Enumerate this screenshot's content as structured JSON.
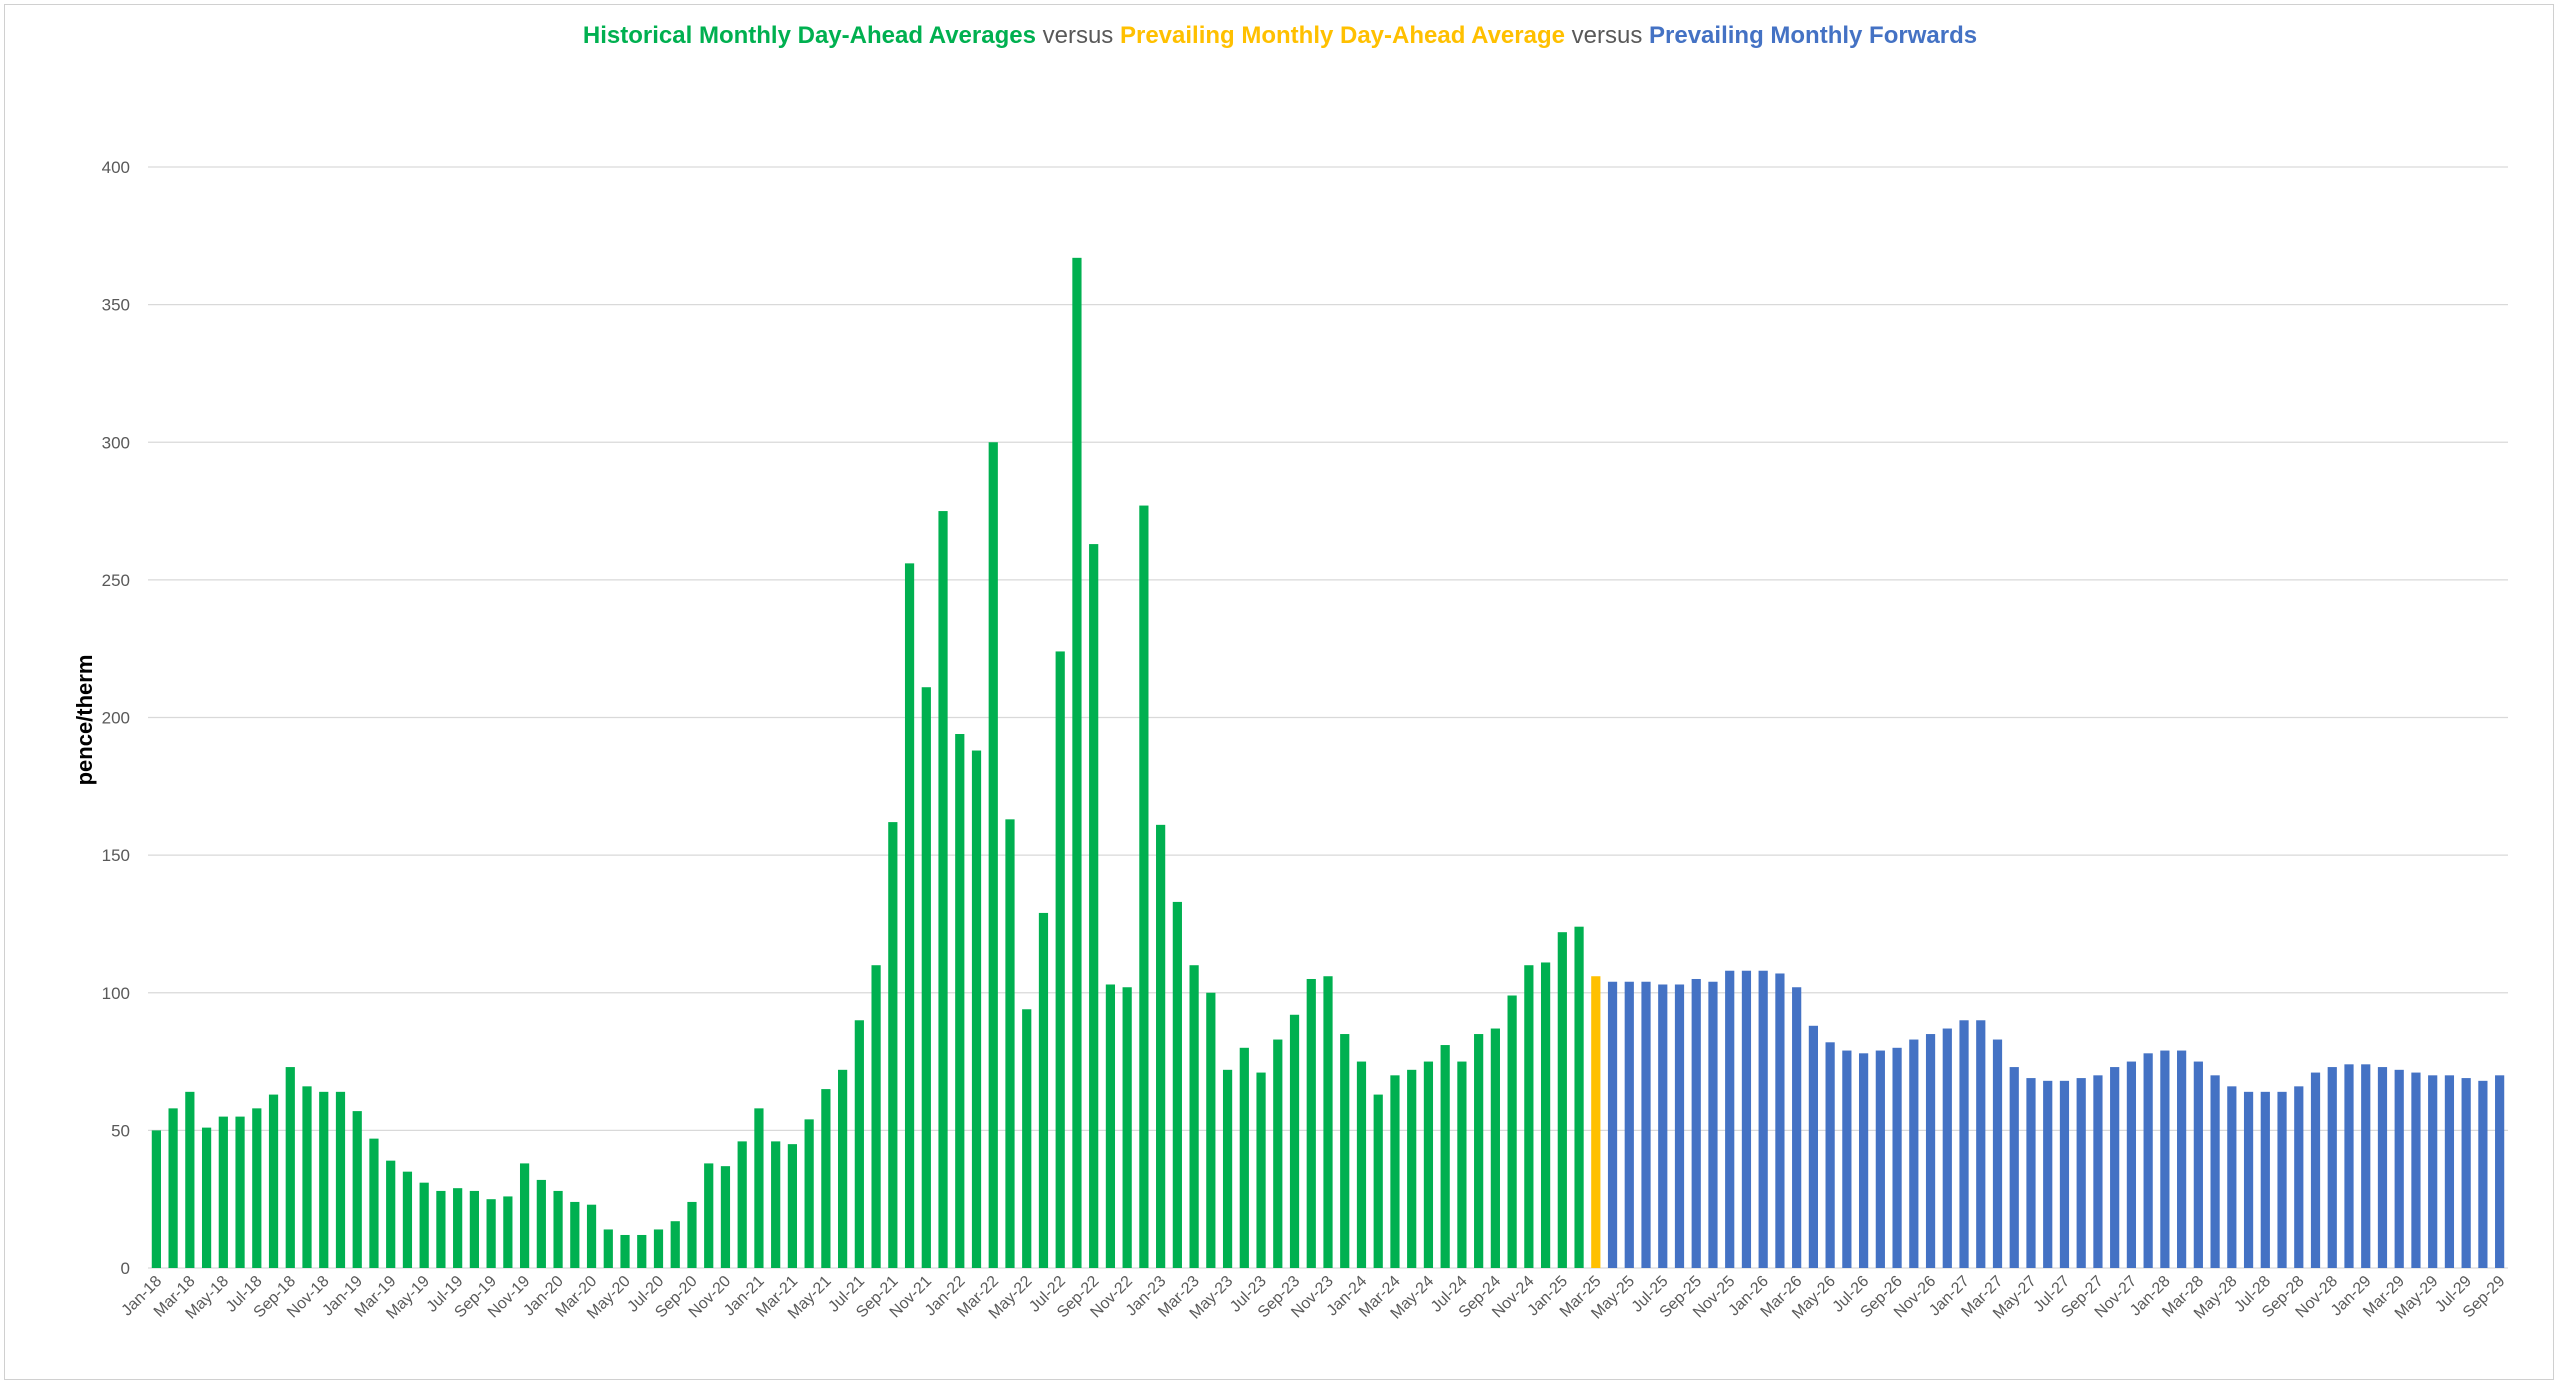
{
  "title": {
    "part1": "Historical Monthly Day-Ahead Averages",
    "vs1": " versus ",
    "part2": "Prevailing Monthly Day-Ahead Average",
    "vs2": " versus ",
    "part3": "Prevailing Monthly Forwards"
  },
  "colors": {
    "historical": "#00b050",
    "prevailing": "#ffc000",
    "forwards": "#4472c4",
    "grid": "#d9d9d9",
    "text": "#595959"
  },
  "chart_data": {
    "type": "bar",
    "title": "Historical Monthly Day-Ahead Averages versus Prevailing Monthly Day-Ahead Average versus Prevailing Monthly Forwards",
    "xlabel": "",
    "ylabel": "pence/therm",
    "ylim": [
      0,
      400
    ],
    "yticks": [
      0,
      50,
      100,
      150,
      200,
      250,
      300,
      350,
      400
    ],
    "grid": true,
    "start_month": "Jan-18",
    "series": [
      {
        "name": "Historical Monthly Day-Ahead Averages",
        "color": "#00b050",
        "start": "Jan-18",
        "values": [
          50,
          58,
          64,
          51,
          55,
          55,
          58,
          63,
          73,
          66,
          64,
          64,
          57,
          47,
          39,
          35,
          31,
          28,
          29,
          28,
          25,
          26,
          38,
          32,
          28,
          24,
          23,
          14,
          12,
          12,
          14,
          17,
          24,
          38,
          37,
          46,
          58,
          46,
          45,
          54,
          65,
          72,
          90,
          110,
          162,
          256,
          211,
          275,
          194,
          188,
          300,
          163,
          94,
          129,
          224,
          367,
          263,
          103,
          102,
          277,
          161,
          133,
          110,
          100,
          72,
          80,
          71,
          83,
          92,
          105,
          106,
          85,
          75,
          63,
          70,
          72,
          75,
          81,
          75,
          85,
          87,
          99,
          110,
          111,
          122,
          124
        ]
      },
      {
        "name": "Prevailing Monthly Day-Ahead Average",
        "color": "#ffc000",
        "start": "Mar-25",
        "values": [
          106
        ]
      },
      {
        "name": "Prevailing Monthly Forwards",
        "color": "#4472c4",
        "start": "Apr-25",
        "values": [
          104,
          104,
          104,
          103,
          103,
          105,
          104,
          108,
          108,
          108,
          107,
          102,
          88,
          82,
          79,
          78,
          79,
          80,
          83,
          85,
          87,
          90,
          90,
          83,
          73,
          69,
          68,
          68,
          69,
          70,
          73,
          75,
          78,
          79,
          79,
          75,
          70,
          66,
          64,
          64,
          64,
          66,
          71,
          73,
          74,
          74,
          73,
          72,
          71,
          70,
          70,
          69,
          68,
          70
        ]
      }
    ],
    "tick_labels": [
      "Jan-18",
      "Mar-18",
      "May-18",
      "Jul-18",
      "Sep-18",
      "Nov-18",
      "Jan-19",
      "Mar-19",
      "May-19",
      "Jul-19",
      "Sep-19",
      "Nov-19",
      "Jan-20",
      "Mar-20",
      "May-20",
      "Jul-20",
      "Sep-20",
      "Nov-20",
      "Jan-21",
      "Mar-21",
      "May-21",
      "Jul-21",
      "Sep-21",
      "Nov-21",
      "Jan-22",
      "Mar-22",
      "May-22",
      "Jul-22",
      "Sep-22",
      "Nov-22",
      "Jan-23",
      "Mar-23",
      "May-23",
      "Jul-23",
      "Sep-23",
      "Nov-23",
      "Jan-24",
      "Mar-24",
      "May-24",
      "Jul-24",
      "Sep-24",
      "Nov-24",
      "Jan-25",
      "Mar-25",
      "May-25",
      "Jul-25",
      "Sep-25",
      "Nov-25",
      "Jan-26",
      "Mar-26",
      "May-26",
      "Jul-26",
      "Sep-26",
      "Nov-26",
      "Jan-27",
      "Mar-27",
      "May-27",
      "Jul-27",
      "Sep-27",
      "Nov-27",
      "Jan-28",
      "Mar-28",
      "May-28",
      "Jul-28",
      "Sep-28",
      "Nov-28",
      "Jan-29",
      "Mar-29",
      "May-29",
      "Jul-29",
      "Sep-29"
    ]
  }
}
